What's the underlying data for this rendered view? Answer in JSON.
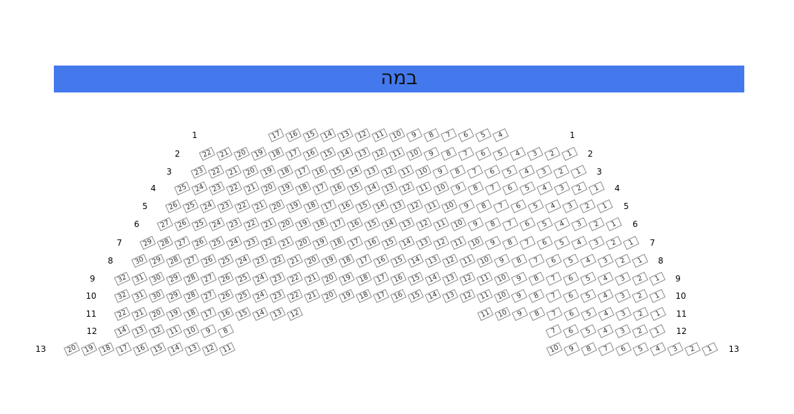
{
  "stage": {
    "label": "במה",
    "color": "#4479ee"
  },
  "rows": [
    {
      "label": "1",
      "sections": [
        {
          "from": 17,
          "to": 4
        }
      ]
    },
    {
      "label": "2",
      "sections": [
        {
          "from": 22,
          "to": 1
        }
      ]
    },
    {
      "label": "3",
      "sections": [
        {
          "from": 23,
          "to": 1
        }
      ]
    },
    {
      "label": "4",
      "sections": [
        {
          "from": 25,
          "to": 1
        }
      ]
    },
    {
      "label": "5",
      "sections": [
        {
          "from": 26,
          "to": 1
        }
      ]
    },
    {
      "label": "6",
      "sections": [
        {
          "from": 27,
          "to": 1
        }
      ]
    },
    {
      "label": "7",
      "sections": [
        {
          "from": 29,
          "to": 1
        }
      ]
    },
    {
      "label": "8",
      "sections": [
        {
          "from": 30,
          "to": 1
        }
      ]
    },
    {
      "label": "9",
      "sections": [
        {
          "from": 32,
          "to": 1
        }
      ]
    },
    {
      "label": "10",
      "sections": [
        {
          "from": 32,
          "to": 1
        }
      ]
    },
    {
      "label": "11",
      "sections": [
        {
          "from": 22,
          "to": 12
        },
        {
          "from": 11,
          "to": 1
        }
      ]
    },
    {
      "label": "12",
      "sections": [
        {
          "from": 14,
          "to": 8
        },
        {
          "from": 7,
          "to": 1
        }
      ]
    },
    {
      "label": "13",
      "sections": [
        {
          "from": 20,
          "to": 11
        },
        {
          "from": 10,
          "to": 1
        }
      ]
    }
  ]
}
